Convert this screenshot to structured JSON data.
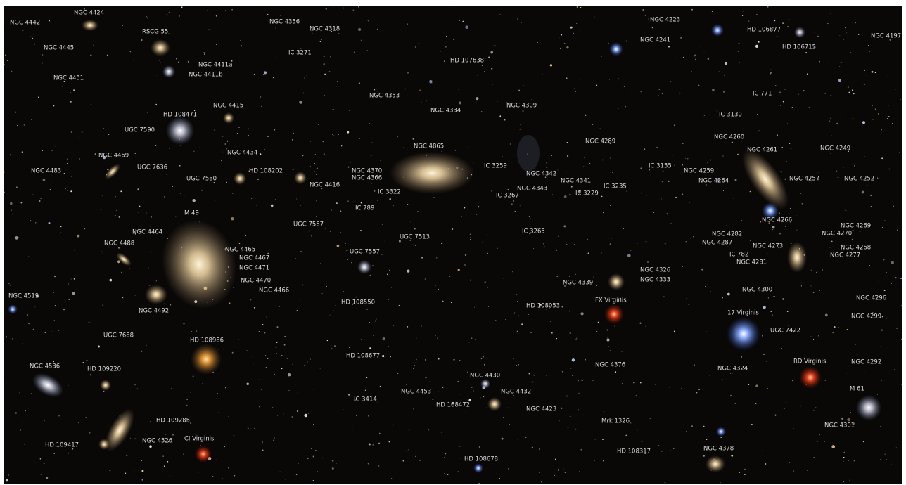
{
  "labels": [
    "NGC 4442",
    "NGC 4424",
    "RSCG 55",
    "NGC 4356",
    "NGC 4318",
    "IC 3271",
    "NGC 4445",
    "NGC 4411a",
    "NGC 4411b",
    "NGC 4451",
    "HD 107638",
    "NGC 4353",
    "NGC 4334",
    "NGC 4309",
    "NGC 4415",
    "HD 108471",
    "UGC 7590",
    "NGC 4865",
    "NGC 4434",
    "NGC 4469",
    "UGC 7636",
    "NGC 4483",
    "HD 108202",
    "UGC 7580",
    "NGC 4416",
    "NGC 4370",
    "NGC 4366",
    "IC 3259",
    "NGC 4342",
    "NGC 4341",
    "NGC 4343",
    "IC 3267",
    "IC 3235",
    "IC 3229",
    "IC 3322",
    "IC 789",
    "UGC 7567",
    "UGC 7513",
    "IC 3265",
    "M 49",
    "NGC 4464",
    "NGC 4488",
    "NGC 4465",
    "NGC 4467",
    "NGC 4471",
    "NGC 4470",
    "NGC 4466",
    "UGC 7557",
    "NGC 4519",
    "NGC 4492",
    "HD 108550",
    "NGC 4326",
    "NGC 4333",
    "NGC 4339",
    "HD 108053",
    "FX Virginis",
    "UGC 7688",
    "HD 108986",
    "HD 108677",
    "NGC 4536",
    "HD 109220",
    "NGC 4376",
    "NGC 4430",
    "NGC 4453",
    "NGC 4432",
    "HD 108472",
    "IC 3414",
    "NGC 4423",
    "HD 109285",
    "NGC 4526",
    "HD 109417",
    "CI Virginis",
    "Mrk 1326",
    "HD 108317",
    "HD 108678",
    "NGC 4378",
    "NGC 4223",
    "HD 106877",
    "NGC 4241",
    "HD 106715",
    "NGC 4197",
    "IC 771",
    "IC 3130",
    "NGC 4260",
    "NGC 4261",
    "NGC 4249",
    "NGC 4289",
    "IC 3155",
    "NGC 4259",
    "NGC 4264",
    "NGC 4257",
    "NGC 4252",
    "NGC 4266",
    "NGC 4269",
    "NGC 4270",
    "NGC 4282",
    "NGC 4287",
    "NGC 4273",
    "NGC 4268",
    "IC 782",
    "NGC 4277",
    "NGC 4281",
    "NGC 4300",
    "NGC 4296",
    "NGC 4299",
    "17 Virginis",
    "UGC 7422",
    "NGC 4324",
    "RD Virginis",
    "NGC 4292",
    "M 61",
    "NGC 4301"
  ]
}
